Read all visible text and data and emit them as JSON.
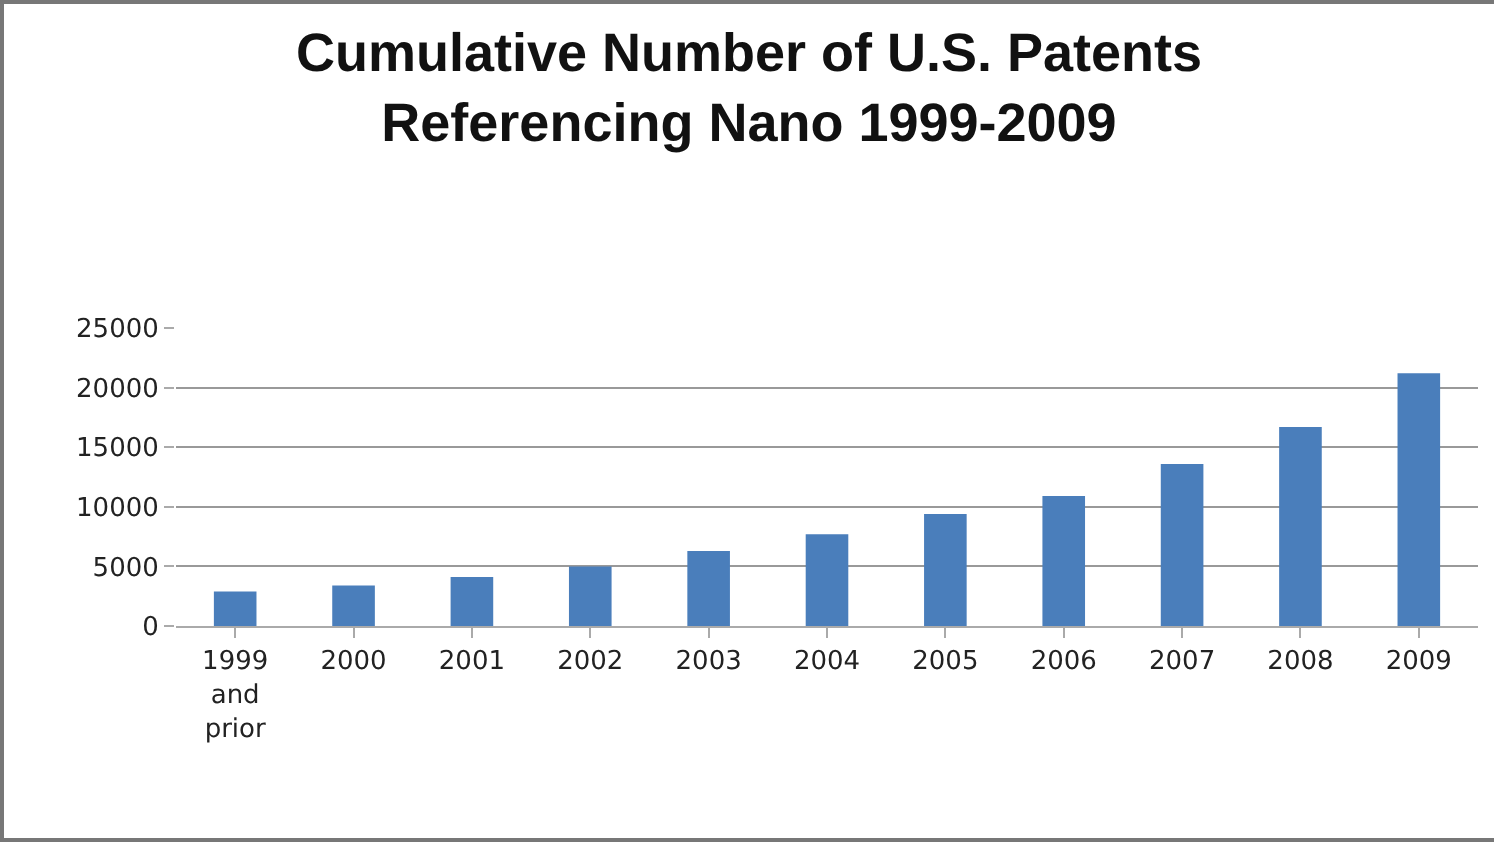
{
  "chart_data": {
    "type": "bar",
    "title": "Cumulative Number of U.S. Patents\nReferencing Nano 1999-2009",
    "categories": [
      "1999\nand\nprior",
      "2000",
      "2001",
      "2002",
      "2003",
      "2004",
      "2005",
      "2006",
      "2007",
      "2008",
      "2009"
    ],
    "values": [
      2900,
      3400,
      4100,
      5000,
      6300,
      7700,
      9400,
      10900,
      13600,
      16700,
      21200
    ],
    "color": "#4a7ebb",
    "ylim": [
      0,
      25000
    ],
    "yticks": [
      0,
      5000,
      10000,
      15000,
      20000,
      25000
    ],
    "grid": "y"
  }
}
